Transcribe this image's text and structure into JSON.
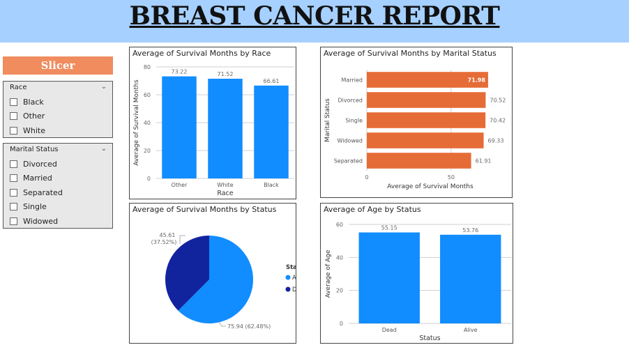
{
  "header": {
    "title": "BREAST CANCER REPORT"
  },
  "slicer": {
    "title": "Slicer",
    "race": {
      "label": "Race",
      "options": [
        "Black",
        "Other",
        "White"
      ]
    },
    "marital": {
      "label": "Marital Status",
      "options": [
        "Divorced",
        "Married",
        "Separated",
        "Single",
        "Widowed"
      ]
    }
  },
  "colors": {
    "blue": "#118dff",
    "orange": "#e66c37",
    "navy": "#12239e",
    "header": "#a6d0ff",
    "slicer": "#f08c5e"
  },
  "chart_data": [
    {
      "id": "race",
      "type": "bar",
      "title": "Average of Survival Months by Race",
      "xlabel": "Race",
      "ylabel": "Average of Survival Months",
      "categories": [
        "Other",
        "White",
        "Black"
      ],
      "values": [
        73.22,
        71.52,
        66.61
      ],
      "value_labels": [
        "73.22",
        "71.52",
        "66.61"
      ],
      "ylim": [
        0,
        80
      ],
      "yticks": [
        "0",
        "20",
        "40",
        "60",
        "80"
      ],
      "grid": true
    },
    {
      "id": "marital",
      "type": "bar",
      "orientation": "horizontal",
      "title": "Average of Survival Months by Marital Status",
      "xlabel": "Average of Survival Months",
      "ylabel": "Marital Status",
      "categories": [
        "Married",
        "Divorced",
        "Single",
        "Widowed",
        "Separated"
      ],
      "values": [
        71.98,
        70.52,
        70.42,
        69.33,
        61.91
      ],
      "value_labels": [
        "71.98",
        "70.52",
        "70.42",
        "69.33",
        "61.91"
      ],
      "xlim": [
        0,
        72
      ],
      "xticks": [
        "0",
        "50"
      ],
      "grid": true
    },
    {
      "id": "status-pie",
      "type": "pie",
      "title": "Average of Survival Months by Status",
      "legend_title": "Status",
      "legend_position": "right",
      "slices": [
        {
          "name": "Alive",
          "value": 75.94,
          "label": "75.94 (62.48%)"
        },
        {
          "name": "Dead",
          "value": 45.61,
          "label_value": "45.61",
          "label_pct": "(37.52%)"
        }
      ]
    },
    {
      "id": "age",
      "type": "bar",
      "title": "Average of Age by Status",
      "xlabel": "Status",
      "ylabel": "Average of Age",
      "categories": [
        "Dead",
        "Alive"
      ],
      "values": [
        55.15,
        53.76
      ],
      "value_labels": [
        "55.15",
        "53.76"
      ],
      "ylim": [
        0,
        60
      ],
      "yticks": [
        "0",
        "20",
        "40",
        "60"
      ],
      "grid": true
    }
  ]
}
